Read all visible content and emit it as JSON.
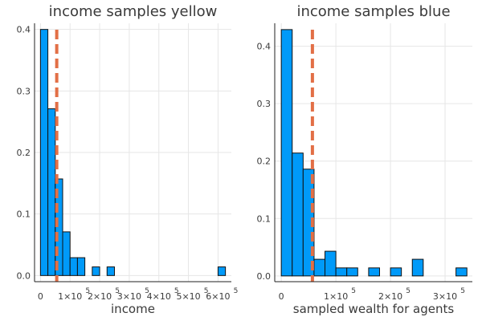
{
  "chart_data": [
    {
      "type": "bar",
      "title": "income samples yellow",
      "xlabel": "income",
      "ylabel": "",
      "bar_color": "#009af9",
      "line_color": "#e26f46",
      "bin_width": 25000,
      "bin_start": 0,
      "values": [
        0.4,
        0.271,
        0.157,
        0.071,
        0.029,
        0.029,
        0.0,
        0.014,
        0.0,
        0.014,
        0.0,
        0.0,
        0.0,
        0.0,
        0.0,
        0.0,
        0.0,
        0.0,
        0.0,
        0.0,
        0.0,
        0.0,
        0.0,
        0.0,
        0.014
      ],
      "mean_line": 55000,
      "xlim": [
        -20000,
        645000
      ],
      "ylim": [
        -0.01,
        0.41
      ],
      "yticks": [
        {
          "value": 0.0,
          "label": "0.0"
        },
        {
          "value": 0.1,
          "label": "0.1"
        },
        {
          "value": 0.2,
          "label": "0.2"
        },
        {
          "value": 0.3,
          "label": "0.3"
        },
        {
          "value": 0.4,
          "label": "0.4"
        }
      ],
      "xticks": [
        {
          "value": 0,
          "label": "0",
          "exp": ""
        },
        {
          "value": 100000,
          "label": "1×10",
          "exp": "5"
        },
        {
          "value": 200000,
          "label": "2×10",
          "exp": "5"
        },
        {
          "value": 300000,
          "label": "3×10",
          "exp": "5"
        },
        {
          "value": 400000,
          "label": "4×10",
          "exp": "5"
        },
        {
          "value": 500000,
          "label": "5×10",
          "exp": "5"
        },
        {
          "value": 600000,
          "label": "6×10",
          "exp": "5"
        }
      ],
      "grid": true,
      "legend": "none"
    },
    {
      "type": "bar",
      "title": "income samples blue",
      "xlabel": "sampled wealth for agents",
      "ylabel": "",
      "bar_color": "#009af9",
      "line_color": "#e26f46",
      "bin_width": 20000,
      "bin_start": 0,
      "values": [
        0.429,
        0.214,
        0.186,
        0.029,
        0.043,
        0.014,
        0.014,
        0.0,
        0.014,
        0.0,
        0.014,
        0.0,
        0.029,
        0.0,
        0.0,
        0.0,
        0.014
      ],
      "mean_line": 57000,
      "xlim": [
        -12000,
        350000
      ],
      "ylim": [
        -0.01,
        0.44
      ],
      "yticks": [
        {
          "value": 0.0,
          "label": "0.0"
        },
        {
          "value": 0.1,
          "label": "0.1"
        },
        {
          "value": 0.2,
          "label": "0.2"
        },
        {
          "value": 0.3,
          "label": "0.3"
        },
        {
          "value": 0.4,
          "label": "0.4"
        }
      ],
      "xticks": [
        {
          "value": 0,
          "label": "0",
          "exp": ""
        },
        {
          "value": 100000,
          "label": "1×10",
          "exp": "5"
        },
        {
          "value": 200000,
          "label": "2×10",
          "exp": "5"
        },
        {
          "value": 300000,
          "label": "3×10",
          "exp": "5"
        }
      ],
      "grid": true,
      "legend": "none"
    }
  ]
}
